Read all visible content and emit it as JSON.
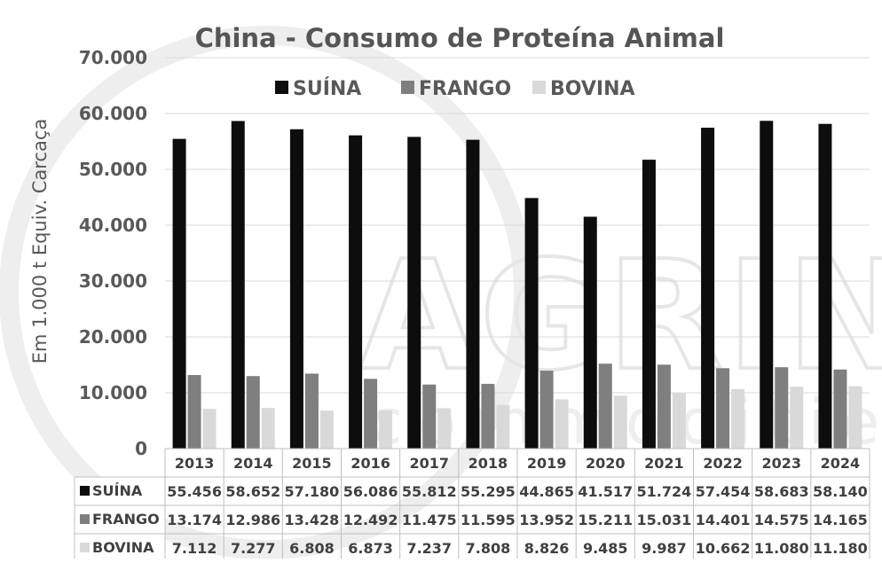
{
  "watermark": {
    "brand": "AGRINVEST",
    "sub": "commodities"
  },
  "chart_data": {
    "type": "bar",
    "title": "China - Consumo de Proteína Animal",
    "ylabel": "Em 1.000 t Equiv. Carcaça",
    "ylim": [
      0,
      70000
    ],
    "yticks": [
      "0",
      "10.000",
      "20.000",
      "30.000",
      "40.000",
      "50.000",
      "60.000",
      "70.000"
    ],
    "grid": true,
    "legend_position": "top",
    "categories": [
      "2013",
      "2014",
      "2015",
      "2016",
      "2017",
      "2018",
      "2019",
      "2020",
      "2021",
      "2022",
      "2023",
      "2024"
    ],
    "series": [
      {
        "name": "SUÍNA",
        "color": "#0d0d0d",
        "values": [
          55456,
          58652,
          57180,
          56086,
          55812,
          55295,
          44865,
          41517,
          51724,
          57454,
          58683,
          58140
        ],
        "labels": [
          "55.456",
          "58.652",
          "57.180",
          "56.086",
          "55.812",
          "55.295",
          "44.865",
          "41.517",
          "51.724",
          "57.454",
          "58.683",
          "58.140"
        ]
      },
      {
        "name": "FRANGO",
        "color": "#7f7f7f",
        "values": [
          13174,
          12986,
          13428,
          12492,
          11475,
          11595,
          13952,
          15211,
          15031,
          14401,
          14575,
          14165
        ],
        "labels": [
          "13.174",
          "12.986",
          "13.428",
          "12.492",
          "11.475",
          "11.595",
          "13.952",
          "15.211",
          "15.031",
          "14.401",
          "14.575",
          "14.165"
        ]
      },
      {
        "name": "BOVINA",
        "color": "#d9d9d9",
        "values": [
          7112,
          7277,
          6808,
          6873,
          7237,
          7808,
          8826,
          9485,
          9987,
          10662,
          11080,
          11180
        ],
        "labels": [
          "7.112",
          "7.277",
          "6.808",
          "6.873",
          "7.237",
          "7.808",
          "8.826",
          "9.485",
          "9.987",
          "10.662",
          "11.080",
          "11.180"
        ]
      }
    ]
  }
}
